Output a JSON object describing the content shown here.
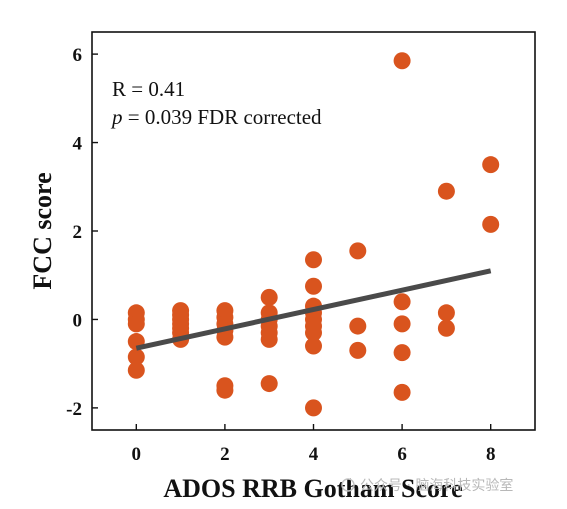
{
  "chart_data": {
    "type": "scatter",
    "title": "",
    "xlabel": "ADOS RRB Gotham Score",
    "ylabel": "FCC score",
    "xlim": [
      -1,
      9
    ],
    "ylim": [
      -2.5,
      6.5
    ],
    "xticks": [
      "0",
      "2",
      "4",
      "6",
      "8"
    ],
    "yticks": [
      "-2",
      "0",
      "2",
      "4",
      "6"
    ],
    "grid": false,
    "point_color": "#D9541E",
    "line_color": "#4A4A4A",
    "annotation": {
      "r_text": "R = 0.41",
      "p_symbol": "p",
      "p_text": " = 0.039 FDR corrected"
    },
    "fit_line": {
      "x": [
        0,
        8
      ],
      "y": [
        -0.65,
        1.1
      ]
    },
    "series": [
      {
        "points": [
          [
            0,
            0.15
          ],
          [
            0,
            0.0
          ],
          [
            0,
            -0.1
          ],
          [
            0,
            -0.5
          ],
          [
            0,
            -0.85
          ],
          [
            0,
            -1.15
          ],
          [
            1,
            0.2
          ],
          [
            1,
            0.1
          ],
          [
            1,
            0.0
          ],
          [
            1,
            -0.1
          ],
          [
            1,
            -0.2
          ],
          [
            1,
            -0.3
          ],
          [
            1,
            -0.45
          ],
          [
            2,
            0.2
          ],
          [
            2,
            0.05
          ],
          [
            2,
            -0.1
          ],
          [
            2,
            -0.25
          ],
          [
            2,
            -0.4
          ],
          [
            2,
            -1.5
          ],
          [
            2,
            -1.6
          ],
          [
            3,
            0.5
          ],
          [
            3,
            0.15
          ],
          [
            3,
            0.0
          ],
          [
            3,
            -0.15
          ],
          [
            3,
            -0.3
          ],
          [
            3,
            -0.45
          ],
          [
            3,
            -1.45
          ],
          [
            4,
            1.35
          ],
          [
            4,
            0.75
          ],
          [
            4,
            0.3
          ],
          [
            4,
            0.15
          ],
          [
            4,
            0.0
          ],
          [
            4,
            -0.15
          ],
          [
            4,
            -0.3
          ],
          [
            4,
            -0.6
          ],
          [
            4,
            -2.0
          ],
          [
            5,
            1.55
          ],
          [
            5,
            -0.15
          ],
          [
            5,
            -0.7
          ],
          [
            6,
            5.85
          ],
          [
            6,
            0.4
          ],
          [
            6,
            -0.1
          ],
          [
            6,
            -0.75
          ],
          [
            6,
            -1.65
          ],
          [
            7,
            2.9
          ],
          [
            7,
            0.15
          ],
          [
            7,
            -0.2
          ],
          [
            8,
            3.5
          ],
          [
            8,
            2.15
          ]
        ]
      }
    ]
  },
  "watermark": "公众号 · 脑海科技实验室"
}
